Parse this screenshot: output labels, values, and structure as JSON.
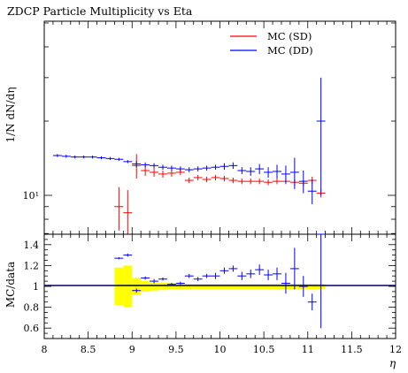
{
  "chart_data": [
    {
      "type": "scatter",
      "panel": "main",
      "title": "ZDCP Particle Multiplicity vs Eta",
      "xlabel": "η",
      "ylabel": "1/N dN/dη",
      "yscale": "log",
      "y_tick_labels": [
        "10¹"
      ],
      "xlim": [
        8,
        12
      ],
      "legend_position": "top-right",
      "series": [
        {
          "name": "MC (SD)",
          "color": "#ff0000",
          "points": [
            {
              "x": 8.85,
              "y": 9.0,
              "err": 1.8
            },
            {
              "x": 8.95,
              "y": 8.5,
              "err": 2.0
            },
            {
              "x": 9.05,
              "y": 13.2,
              "err": 1.5
            },
            {
              "x": 9.15,
              "y": 12.6,
              "err": 0.6
            },
            {
              "x": 9.25,
              "y": 12.4,
              "err": 0.5
            },
            {
              "x": 9.35,
              "y": 12.2,
              "err": 0.4
            },
            {
              "x": 9.45,
              "y": 12.3,
              "err": 0.4
            },
            {
              "x": 9.55,
              "y": 12.4,
              "err": 0.3
            },
            {
              "x": 9.65,
              "y": 11.5,
              "err": 0.3
            },
            {
              "x": 9.75,
              "y": 11.8,
              "err": 0.3
            },
            {
              "x": 9.85,
              "y": 11.6,
              "err": 0.3
            },
            {
              "x": 9.95,
              "y": 11.8,
              "err": 0.3
            },
            {
              "x": 10.05,
              "y": 11.7,
              "err": 0.3
            },
            {
              "x": 10.15,
              "y": 11.5,
              "err": 0.3
            },
            {
              "x": 10.25,
              "y": 11.4,
              "err": 0.3
            },
            {
              "x": 10.35,
              "y": 11.4,
              "err": 0.3
            },
            {
              "x": 10.45,
              "y": 11.4,
              "err": 0.3
            },
            {
              "x": 10.55,
              "y": 11.3,
              "err": 0.3
            },
            {
              "x": 10.65,
              "y": 11.4,
              "err": 0.3
            },
            {
              "x": 10.75,
              "y": 11.4,
              "err": 0.3
            },
            {
              "x": 10.85,
              "y": 11.3,
              "err": 0.3
            },
            {
              "x": 10.95,
              "y": 11.2,
              "err": 0.3
            },
            {
              "x": 11.05,
              "y": 11.5,
              "err": 0.4
            },
            {
              "x": 11.15,
              "y": 10.2,
              "err": 0.4
            }
          ]
        },
        {
          "name": "MC (DD)",
          "color": "#0000ff",
          "points": [
            {
              "x": 8.15,
              "y": 14.5,
              "err": 0.2
            },
            {
              "x": 8.25,
              "y": 14.4,
              "err": 0.2
            },
            {
              "x": 8.35,
              "y": 14.3,
              "err": 0.2
            },
            {
              "x": 8.45,
              "y": 14.3,
              "err": 0.2
            },
            {
              "x": 8.55,
              "y": 14.3,
              "err": 0.2
            },
            {
              "x": 8.65,
              "y": 14.2,
              "err": 0.2
            },
            {
              "x": 8.75,
              "y": 14.1,
              "err": 0.2
            },
            {
              "x": 8.85,
              "y": 14.0,
              "err": 0.2
            },
            {
              "x": 8.95,
              "y": 13.7,
              "err": 0.2
            },
            {
              "x": 9.05,
              "y": 13.4,
              "err": 0.4
            },
            {
              "x": 9.15,
              "y": 13.3,
              "err": 0.3
            },
            {
              "x": 9.25,
              "y": 13.2,
              "err": 0.3
            },
            {
              "x": 9.35,
              "y": 13.0,
              "err": 0.3
            },
            {
              "x": 9.45,
              "y": 12.9,
              "err": 0.3
            },
            {
              "x": 9.55,
              "y": 12.8,
              "err": 0.3
            },
            {
              "x": 9.65,
              "y": 12.7,
              "err": 0.3
            },
            {
              "x": 9.75,
              "y": 12.8,
              "err": 0.3
            },
            {
              "x": 9.85,
              "y": 12.9,
              "err": 0.3
            },
            {
              "x": 9.95,
              "y": 13.0,
              "err": 0.3
            },
            {
              "x": 10.05,
              "y": 13.1,
              "err": 0.4
            },
            {
              "x": 10.15,
              "y": 13.2,
              "err": 0.4
            },
            {
              "x": 10.25,
              "y": 12.6,
              "err": 0.4
            },
            {
              "x": 10.35,
              "y": 12.5,
              "err": 0.5
            },
            {
              "x": 10.45,
              "y": 12.8,
              "err": 0.6
            },
            {
              "x": 10.55,
              "y": 12.4,
              "err": 0.6
            },
            {
              "x": 10.65,
              "y": 12.5,
              "err": 0.8
            },
            {
              "x": 10.75,
              "y": 12.2,
              "err": 1.0
            },
            {
              "x": 10.85,
              "y": 12.4,
              "err": 1.8
            },
            {
              "x": 10.95,
              "y": 11.4,
              "err": 1.2
            },
            {
              "x": 11.05,
              "y": 10.4,
              "err": 1.2
            },
            {
              "x": 11.15,
              "y": 20.0,
              "err": 10.0
            }
          ]
        }
      ]
    },
    {
      "type": "scatter",
      "panel": "ratio",
      "xlabel": "η",
      "ylabel": "MC/data",
      "ylim": [
        0.5,
        1.5
      ],
      "xlim": [
        8,
        12
      ],
      "x_ticks": [
        "8",
        "8.5",
        "9",
        "9.5",
        "10",
        "10.5",
        "11",
        "11.5",
        "12"
      ],
      "y_ticks": [
        "0.6",
        "0.8",
        "1",
        "1.2",
        "1.4"
      ],
      "reference_line": 1,
      "band": {
        "color": "#ffff00",
        "bins": [
          {
            "x": [
              8.8,
              8.9
            ],
            "low": 0.82,
            "high": 1.18
          },
          {
            "x": [
              8.9,
              9.0
            ],
            "low": 0.8,
            "high": 1.2
          },
          {
            "x": [
              9.0,
              9.1
            ],
            "low": 0.92,
            "high": 1.08
          },
          {
            "x": [
              9.1,
              9.2
            ],
            "low": 0.95,
            "high": 1.05
          },
          {
            "x": [
              9.2,
              9.3
            ],
            "low": 0.96,
            "high": 1.04
          },
          {
            "x": [
              9.3,
              9.4
            ],
            "low": 0.965,
            "high": 1.035
          },
          {
            "x": [
              9.4,
              9.5
            ],
            "low": 0.97,
            "high": 1.03
          },
          {
            "x": [
              9.5,
              9.6
            ],
            "low": 0.97,
            "high": 1.03
          },
          {
            "x": [
              9.6,
              9.7
            ],
            "low": 0.975,
            "high": 1.025
          },
          {
            "x": [
              9.7,
              11.2
            ],
            "low": 0.975,
            "high": 1.025
          }
        ]
      },
      "series": [
        {
          "name": "MC (DD)",
          "color": "#0000ff",
          "points": [
            {
              "x": 8.85,
              "y": 1.27,
              "err": 0.01
            },
            {
              "x": 8.95,
              "y": 1.3,
              "err": 0.015
            },
            {
              "x": 9.05,
              "y": 0.96,
              "err": 0.02
            },
            {
              "x": 9.15,
              "y": 1.08,
              "err": 0.015
            },
            {
              "x": 9.25,
              "y": 1.05,
              "err": 0.02
            },
            {
              "x": 9.35,
              "y": 1.07,
              "err": 0.015
            },
            {
              "x": 9.45,
              "y": 1.02,
              "err": 0.015
            },
            {
              "x": 9.55,
              "y": 1.03,
              "err": 0.015
            },
            {
              "x": 9.65,
              "y": 1.1,
              "err": 0.02
            },
            {
              "x": 9.75,
              "y": 1.07,
              "err": 0.02
            },
            {
              "x": 9.85,
              "y": 1.1,
              "err": 0.02
            },
            {
              "x": 9.95,
              "y": 1.1,
              "err": 0.03
            },
            {
              "x": 10.05,
              "y": 1.15,
              "err": 0.03
            },
            {
              "x": 10.15,
              "y": 1.17,
              "err": 0.03
            },
            {
              "x": 10.25,
              "y": 1.1,
              "err": 0.04
            },
            {
              "x": 10.35,
              "y": 1.12,
              "err": 0.04
            },
            {
              "x": 10.45,
              "y": 1.16,
              "err": 0.05
            },
            {
              "x": 10.55,
              "y": 1.11,
              "err": 0.05
            },
            {
              "x": 10.65,
              "y": 1.12,
              "err": 0.06
            },
            {
              "x": 10.75,
              "y": 1.03,
              "err": 0.1
            },
            {
              "x": 10.85,
              "y": 1.17,
              "err": 0.2
            },
            {
              "x": 10.95,
              "y": 1.0,
              "err": 0.1
            },
            {
              "x": 11.05,
              "y": 0.85,
              "err": 0.08
            },
            {
              "x": 11.15,
              "y": 1.6,
              "err": 1.0
            }
          ]
        }
      ]
    }
  ]
}
